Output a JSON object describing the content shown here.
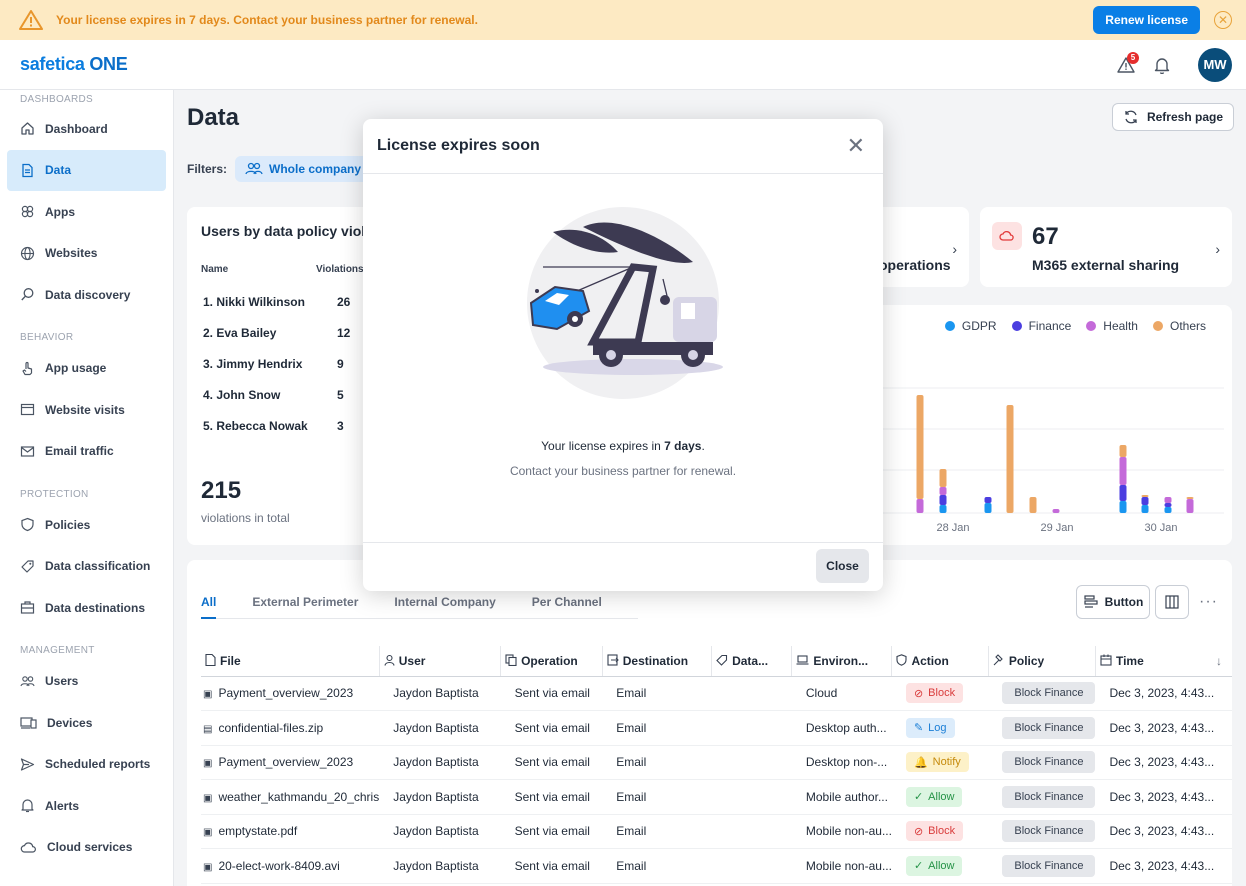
{
  "banner": {
    "message": "Your license expires in 7 days. Contact your business partner for renewal.",
    "renew_label": "Renew license"
  },
  "topbar": {
    "logo_prefix": "safetica",
    "logo_suffix": "ONE",
    "alert_count": "5",
    "avatar_initials": "MW"
  },
  "sidebar": {
    "sections": [
      {
        "title": "DASHBOARDS",
        "items": [
          "Dashboard",
          "Data",
          "Apps",
          "Websites",
          "Data discovery"
        ]
      },
      {
        "title": "BEHAVIOR",
        "items": [
          "App usage",
          "Website visits",
          "Email traffic"
        ]
      },
      {
        "title": "PROTECTION",
        "items": [
          "Policies",
          "Data classification",
          "Data destinations"
        ]
      },
      {
        "title": "MANAGEMENT",
        "items": [
          "Users",
          "Devices",
          "Scheduled reports",
          "Alerts",
          "Cloud services"
        ]
      }
    ],
    "active": "Data"
  },
  "page": {
    "title": "Data",
    "refresh_label": "Refresh page",
    "filters_label": "Filters:",
    "filter_chip": "Whole company"
  },
  "users_card": {
    "title": "Users by data policy violations",
    "col_name": "Name",
    "col_violations": "Violations",
    "rows": [
      {
        "name": "1. Nikki Wilkinson",
        "count": "26"
      },
      {
        "name": "2. Eva Bailey",
        "count": "12"
      },
      {
        "name": "3. Jimmy Hendrix",
        "count": "9"
      },
      {
        "name": "4. John Snow",
        "count": "5"
      },
      {
        "name": "5. Rebecca Nowak",
        "count": "3"
      }
    ],
    "total": "215",
    "total_label": "violations in total"
  },
  "stat_ops": {
    "label": "operations"
  },
  "stat_m365": {
    "value": "67",
    "label": "M365 external sharing"
  },
  "chart_data": {
    "type": "bar",
    "stacked": true,
    "categories": [
      "28 Jan",
      "29 Jan",
      "30 Jan"
    ],
    "legend": [
      "GDPR",
      "Finance",
      "Health",
      "Others"
    ],
    "colors": {
      "GDPR": "#1a96f0",
      "Finance": "#4b3ee0",
      "Health": "#c46ad9",
      "Others": "#eca765"
    },
    "bars": [
      {
        "GDPR": 0,
        "Finance": 0,
        "Health": 14,
        "Others": 104
      },
      {
        "GDPR": 8,
        "Finance": 10,
        "Health": 8,
        "Others": 18
      },
      {
        "GDPR": 10,
        "Finance": 6,
        "Health": 0,
        "Others": 0
      },
      {
        "GDPR": 0,
        "Finance": 0,
        "Health": 0,
        "Others": 108
      },
      {
        "GDPR": 0,
        "Finance": 0,
        "Health": 0,
        "Others": 16
      },
      {
        "GDPR": 0,
        "Finance": 0,
        "Health": 4,
        "Others": 0
      },
      {
        "GDPR": 12,
        "Finance": 16,
        "Health": 28,
        "Others": 12
      },
      {
        "GDPR": 8,
        "Finance": 8,
        "Health": 0,
        "Others": 2
      },
      {
        "GDPR": 6,
        "Finance": 4,
        "Health": 6,
        "Others": 0
      },
      {
        "GDPR": 0,
        "Finance": 0,
        "Health": 14,
        "Others": 2
      }
    ]
  },
  "table": {
    "tabs": [
      "All",
      "External Perimeter",
      "Internal Company",
      "Per Channel"
    ],
    "button_label": "Button",
    "columns": [
      "File",
      "User",
      "Operation",
      "Destination",
      "Data...",
      "Environ...",
      "Action",
      "Policy",
      "Time"
    ],
    "rows": [
      {
        "file": "Payment_overview_2023",
        "user": "Jaydon Baptista",
        "operation": "Sent via email",
        "destination": "Email",
        "data": "",
        "env": "Cloud",
        "action": "Block",
        "policy": "Block Finance",
        "time": "Dec 3, 2023, 4:43..."
      },
      {
        "file": "confidential-files.zip",
        "user": "Jaydon Baptista",
        "operation": "Sent via email",
        "destination": "Email",
        "data": "",
        "env": "Desktop auth...",
        "action": "Log",
        "policy": "Block Finance",
        "time": "Dec 3, 2023, 4:43..."
      },
      {
        "file": "Payment_overview_2023",
        "user": "Jaydon Baptista",
        "operation": "Sent via email",
        "destination": "Email",
        "data": "",
        "env": "Desktop non-...",
        "action": "Notify",
        "policy": "Block Finance",
        "time": "Dec 3, 2023, 4:43..."
      },
      {
        "file": "weather_kathmandu_20_chris",
        "user": "Jaydon Baptista",
        "operation": "Sent via email",
        "destination": "Email",
        "data": "",
        "env": "Mobile author...",
        "action": "Allow",
        "policy": "Block Finance",
        "time": "Dec 3, 2023, 4:43..."
      },
      {
        "file": "emptystate.pdf",
        "user": "Jaydon Baptista",
        "operation": "Sent via email",
        "destination": "Email",
        "data": "",
        "env": "Mobile non-au...",
        "action": "Block",
        "policy": "Block Finance",
        "time": "Dec 3, 2023, 4:43..."
      },
      {
        "file": "20-elect-work-8409.avi",
        "user": "Jaydon Baptista",
        "operation": "Sent via email",
        "destination": "Email",
        "data": "",
        "env": "Mobile non-au...",
        "action": "Allow",
        "policy": "Block Finance",
        "time": "Dec 3, 2023, 4:43..."
      }
    ]
  },
  "modal": {
    "title": "License expires soon",
    "line1_prefix": "Your license expires in ",
    "line1_bold": "7 days",
    "line1_suffix": ".",
    "line2": "Contact your business partner for renewal.",
    "close_label": "Close"
  }
}
